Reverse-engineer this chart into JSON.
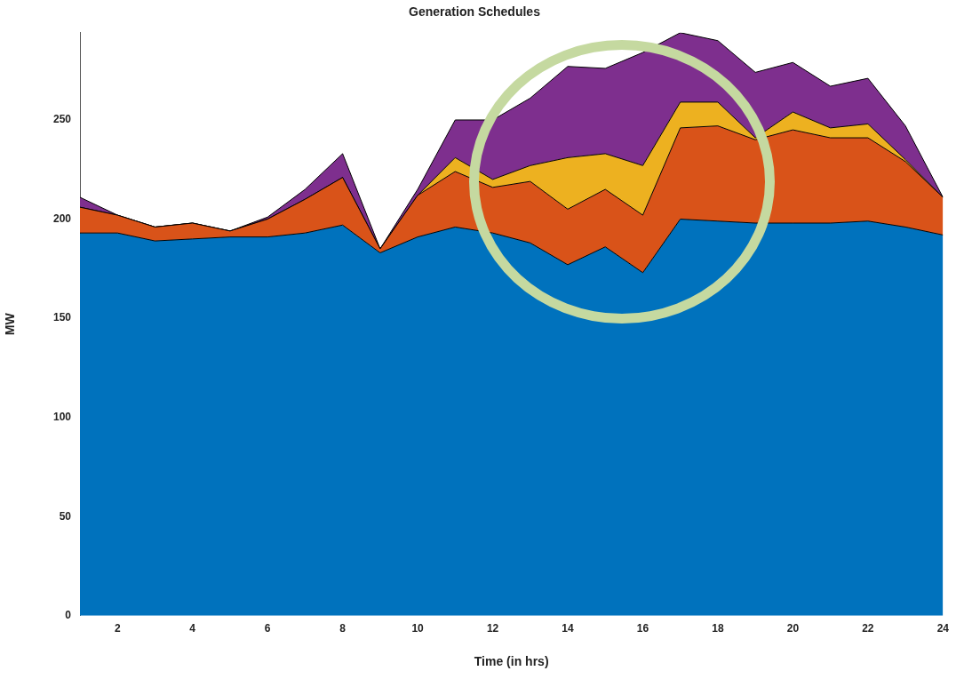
{
  "chart_data": {
    "type": "area",
    "title": "Generation Schedules",
    "xlabel": "Time (in hrs)",
    "ylabel": "MW",
    "stacked": true,
    "x": [
      1,
      2,
      3,
      4,
      5,
      6,
      7,
      8,
      9,
      10,
      11,
      12,
      13,
      14,
      15,
      16,
      17,
      18,
      19,
      20,
      21,
      22,
      23,
      24
    ],
    "series": [
      {
        "color": "#0072bd",
        "values": [
          193,
          193,
          189,
          190,
          191,
          191,
          193,
          197,
          183,
          191,
          196,
          193,
          188,
          177,
          186,
          173,
          200,
          199,
          198,
          198,
          198,
          199,
          196,
          192
        ]
      },
      {
        "color": "#d95319",
        "values": [
          13,
          9,
          7,
          8,
          3,
          9,
          17,
          24,
          2,
          21,
          28,
          23,
          31,
          28,
          29,
          29,
          46,
          48,
          42,
          47,
          43,
          42,
          33,
          19
        ]
      },
      {
        "color": "#edb120",
        "values": [
          0,
          0,
          0,
          0,
          0,
          0,
          0,
          0,
          0,
          0,
          7,
          4,
          8,
          26,
          18,
          25,
          13,
          12,
          1,
          9,
          5,
          7,
          1,
          0
        ]
      },
      {
        "color": "#7e2f8e",
        "values": [
          5,
          0,
          0,
          0,
          0,
          1,
          5,
          12,
          0,
          3,
          19,
          30,
          34,
          46,
          43,
          57,
          35,
          31,
          33,
          25,
          21,
          23,
          17,
          0
        ]
      }
    ],
    "xlim": [
      1,
      24
    ],
    "xticks": [
      2,
      4,
      6,
      8,
      10,
      12,
      14,
      16,
      18,
      20,
      22,
      24
    ],
    "ylim": [
      0,
      294
    ],
    "yticks": [
      0,
      50,
      100,
      150,
      200,
      250
    ],
    "grid": false,
    "legend": false
  }
}
